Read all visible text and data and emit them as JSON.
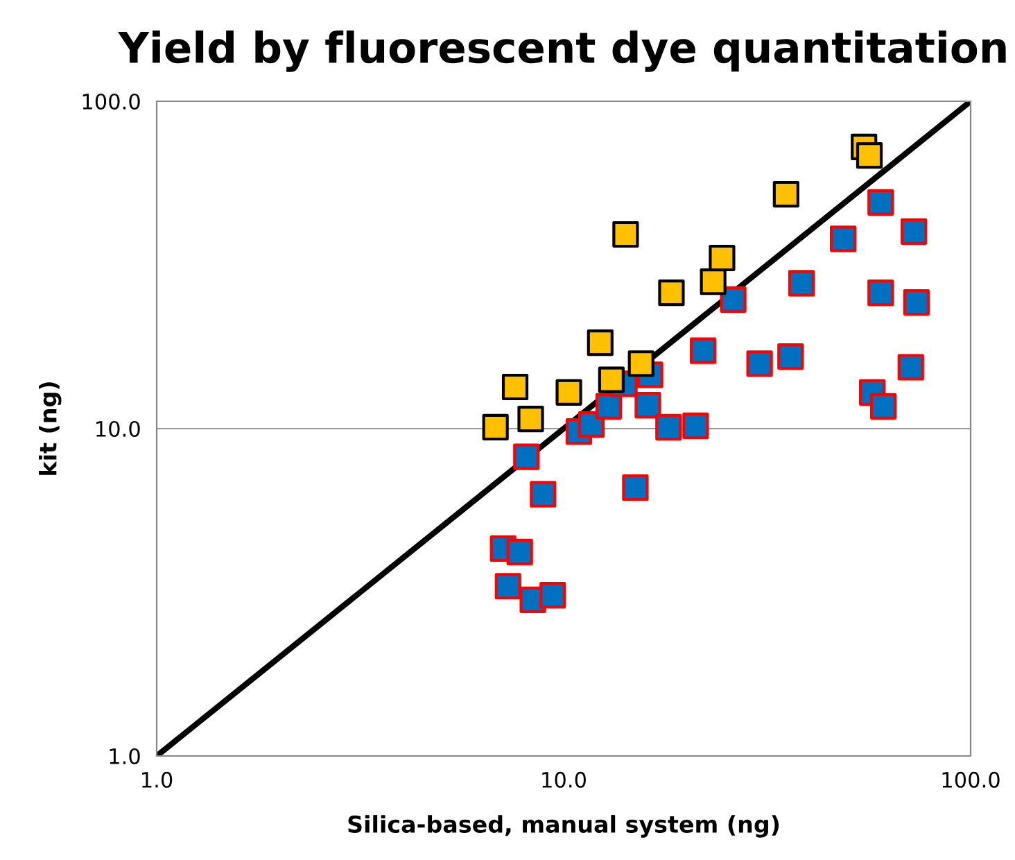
{
  "chart_data": {
    "type": "scatter",
    "title": "Yield by fluorescent dye quantitation",
    "xlabel": "Silica-based, manual system (ng)",
    "ylabel": "kit (ng)",
    "log": "xy",
    "grid": "y",
    "marker": "square",
    "xlim": [
      1,
      100
    ],
    "ylim": [
      1,
      100
    ],
    "xticks": [
      {
        "value": 1,
        "label": "1.0"
      },
      {
        "value": 10,
        "label": "10.0"
      },
      {
        "value": 100,
        "label": "100.0"
      }
    ],
    "yticks": [
      {
        "value": 1,
        "label": "1.0"
      },
      {
        "value": 10,
        "label": "10.0"
      },
      {
        "value": 100,
        "label": "100.0"
      }
    ],
    "series": [
      {
        "color": "#0070c0",
        "x": [
          8.1,
          8.9,
          7.1,
          7.8,
          7.3,
          8.4,
          9.4,
          15.0,
          10.9,
          11.7,
          12.9,
          14.1,
          16.3,
          16.1,
          18.1,
          21.1,
          22.0,
          30.3,
          36.1,
          57.3,
          61.0,
          71.3,
          26.1,
          38.4,
          48.6,
          60.1,
          72.5,
          60.1,
          73.6
        ],
        "values": [
          8.2,
          6.3,
          4.3,
          4.2,
          3.3,
          3.0,
          3.1,
          6.6,
          9.8,
          10.3,
          11.7,
          13.7,
          14.6,
          11.8,
          10.1,
          10.2,
          17.3,
          15.8,
          16.6,
          12.9,
          11.7,
          15.4,
          24.8,
          27.8,
          38.0,
          49.1,
          40.0,
          26.0,
          24.3
        ]
      },
      {
        "color": "#ffc000",
        "x": [
          6.8,
          7.6,
          8.3,
          10.3,
          12.3,
          13.1,
          14.2,
          15.5,
          18.4,
          23.3,
          24.5,
          35.2,
          54.7,
          56.4
        ],
        "values": [
          10.1,
          13.4,
          10.7,
          12.9,
          18.3,
          14.1,
          39.2,
          15.8,
          26.0,
          28.1,
          33.2,
          52.0,
          72.5,
          68.3
        ]
      },
      {
        "type": "line",
        "color": "#000000",
        "marker": "none",
        "x": [
          1,
          100
        ],
        "values": [
          1,
          100
        ]
      }
    ]
  }
}
